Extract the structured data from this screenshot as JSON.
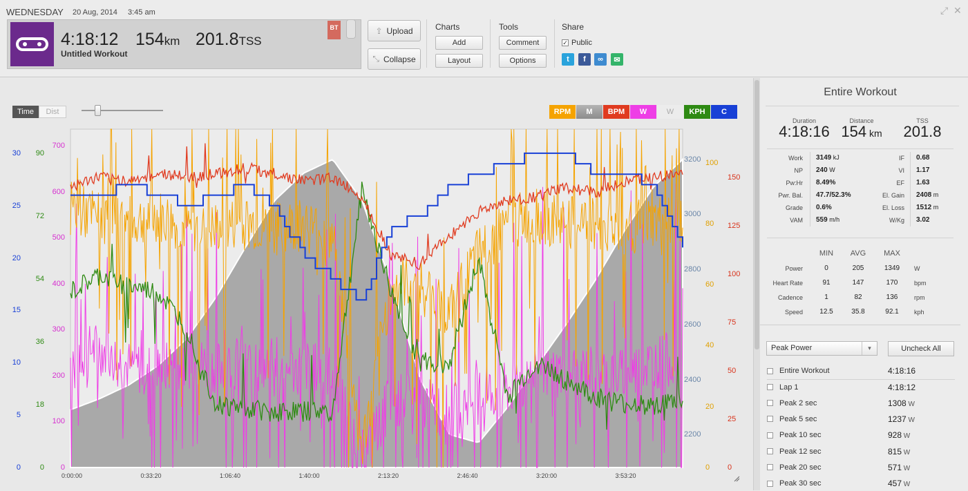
{
  "header": {
    "day": "WEDNESDAY",
    "date": "20 Aug, 2014",
    "time": "3:45 am",
    "duration": "4:18:12",
    "distance_value": "154",
    "distance_unit": "km",
    "tss_value": "201.8",
    "tss_unit": "TSS",
    "workout_name": "Untitled Workout",
    "bt_badge": "BT"
  },
  "actions": {
    "upload": "Upload",
    "collapse": "Collapse"
  },
  "charts_group": {
    "title": "Charts",
    "add": "Add",
    "layout": "Layout"
  },
  "tools_group": {
    "title": "Tools",
    "comment": "Comment",
    "options": "Options"
  },
  "share_group": {
    "title": "Share",
    "public_label": "Public",
    "public_checked": true
  },
  "axis_toggle": {
    "time": "Time",
    "dist": "Dist"
  },
  "channels": [
    {
      "label": "RPM",
      "color": "#f5a300"
    },
    {
      "label": "M",
      "color": "#8f8f8f"
    },
    {
      "label": "BPM",
      "color": "#e03b20"
    },
    {
      "label": "W",
      "color": "#ee3ee6"
    },
    {
      "label": "W",
      "color": "#ececec"
    },
    {
      "label": "KPH",
      "color": "#2e8a13"
    },
    {
      "label": "C",
      "color": "#1840d6"
    }
  ],
  "chart_data": {
    "type": "line",
    "x_ticks": [
      "0:00:00",
      "0:33:20",
      "1:06:40",
      "1:40:00",
      "2:13:20",
      "2:46:40",
      "3:20:00",
      "3:53:20"
    ],
    "axes": {
      "temp_c": {
        "ticks": [
          "30",
          "25",
          "20",
          "15",
          "10",
          "5",
          "0"
        ],
        "color": "#1840d6"
      },
      "speed_kph": {
        "ticks": [
          "90",
          "72",
          "54",
          "36",
          "18",
          "0"
        ],
        "color": "#2e8a13"
      },
      "power_w": {
        "ticks": [
          "700",
          "600",
          "500",
          "400",
          "300",
          "200",
          "100",
          "0"
        ],
        "color": "#d62fd0"
      },
      "elevation_m": {
        "ticks": [
          "3200",
          "3000",
          "2800",
          "2600",
          "2400",
          "2200"
        ],
        "color": "#6a86a8"
      },
      "cadence_rpm": {
        "ticks": [
          "100",
          "80",
          "60",
          "40",
          "20",
          "0"
        ],
        "color": "#e0a000"
      },
      "heart_rate_bpm": {
        "ticks": [
          "150",
          "125",
          "100",
          "75",
          "50",
          "25",
          "0"
        ],
        "color": "#d8331b"
      }
    },
    "series": [
      {
        "name": "M",
        "color": "#8f8f8f",
        "values": [
          2290,
          2330,
          2380,
          2450,
          2550,
          2700,
          2880,
          3050,
          3150,
          3200,
          3050,
          2750,
          2400,
          2200,
          2170,
          2300,
          2450,
          2600,
          2760,
          2940,
          3100,
          3200
        ]
      },
      {
        "name": "BPM",
        "color": "#e03b20",
        "values": [
          145,
          150,
          148,
          152,
          150,
          152,
          155,
          152,
          148,
          150,
          140,
          110,
          105,
          120,
          132,
          138,
          140,
          145,
          142,
          148,
          150,
          152
        ]
      },
      {
        "name": "KPH",
        "color": "#2e8a13",
        "values": [
          50,
          55,
          52,
          50,
          40,
          18,
          17,
          16,
          16,
          16,
          80,
          50,
          30,
          30,
          60,
          20,
          30,
          25,
          20,
          18,
          18,
          19
        ]
      },
      {
        "name": "W",
        "color": "#ee3ee6",
        "values": [
          240,
          260,
          220,
          210,
          230,
          220,
          230,
          200,
          220,
          210,
          20,
          150,
          140,
          120,
          160,
          170,
          200,
          210,
          210,
          200,
          230,
          240
        ]
      },
      {
        "name": "RPM",
        "color": "#f5a300",
        "values": [
          85,
          82,
          80,
          82,
          78,
          78,
          80,
          78,
          80,
          75,
          5,
          60,
          60,
          50,
          70,
          80,
          82,
          80,
          80,
          78,
          80,
          80
        ]
      },
      {
        "name": "C",
        "color": "#1840d6",
        "values": [
          26,
          26,
          27,
          26,
          25,
          26,
          27,
          25,
          20,
          18,
          16,
          23,
          24,
          27,
          28,
          29,
          30,
          30,
          28,
          28,
          27,
          21
        ]
      }
    ]
  },
  "sidebar": {
    "title": "Entire Workout",
    "metrics": [
      {
        "label": "Duration",
        "value": "4:18:16",
        "unit": ""
      },
      {
        "label": "Distance",
        "value": "154",
        "unit": "km"
      },
      {
        "label": "TSS",
        "value": "201.8",
        "unit": ""
      }
    ],
    "stats_left": [
      {
        "label": "Work",
        "value": "3149",
        "unit": "kJ"
      },
      {
        "label": "NP",
        "value": "240",
        "unit": "W"
      },
      {
        "label": "Pw:Hr",
        "value": "8.49%",
        "unit": ""
      },
      {
        "label": "Pwr. Bal.",
        "value": "47.7/52.3%",
        "unit": ""
      },
      {
        "label": "Grade",
        "value": "0.6%",
        "unit": ""
      },
      {
        "label": "VAM",
        "value": "559",
        "unit": "m/h"
      }
    ],
    "stats_right": [
      {
        "label": "IF",
        "value": "0.68",
        "unit": ""
      },
      {
        "label": "VI",
        "value": "1.17",
        "unit": ""
      },
      {
        "label": "EF",
        "value": "1.63",
        "unit": ""
      },
      {
        "label": "El. Gain",
        "value": "2408",
        "unit": "m"
      },
      {
        "label": "El. Loss",
        "value": "1512",
        "unit": "m"
      },
      {
        "label": "W/Kg",
        "value": "3.02",
        "unit": ""
      }
    ],
    "table_headers": [
      "MIN",
      "AVG",
      "MAX"
    ],
    "table_rows": [
      {
        "label": "Power",
        "min": "0",
        "avg": "205",
        "max": "1349",
        "unit": "W"
      },
      {
        "label": "Heart Rate",
        "min": "91",
        "avg": "147",
        "max": "170",
        "unit": "bpm"
      },
      {
        "label": "Cadence",
        "min": "1",
        "avg": "82",
        "max": "136",
        "unit": "rpm"
      },
      {
        "label": "Speed",
        "min": "12.5",
        "avg": "35.8",
        "max": "92.1",
        "unit": "kph"
      }
    ],
    "peak_select": "Peak Power",
    "uncheck_all": "Uncheck All",
    "peaks": [
      {
        "label": "Entire Workout",
        "value": "4:18:16",
        "unit": ""
      },
      {
        "label": "Lap 1",
        "value": "4:18:12",
        "unit": ""
      },
      {
        "label": "Peak 2 sec",
        "value": "1308",
        "unit": "W"
      },
      {
        "label": "Peak 5 sec",
        "value": "1237",
        "unit": "W"
      },
      {
        "label": "Peak 10 sec",
        "value": "928",
        "unit": "W"
      },
      {
        "label": "Peak 12 sec",
        "value": "815",
        "unit": "W"
      },
      {
        "label": "Peak 20 sec",
        "value": "571",
        "unit": "W"
      },
      {
        "label": "Peak 30 sec",
        "value": "457",
        "unit": "W"
      }
    ]
  }
}
